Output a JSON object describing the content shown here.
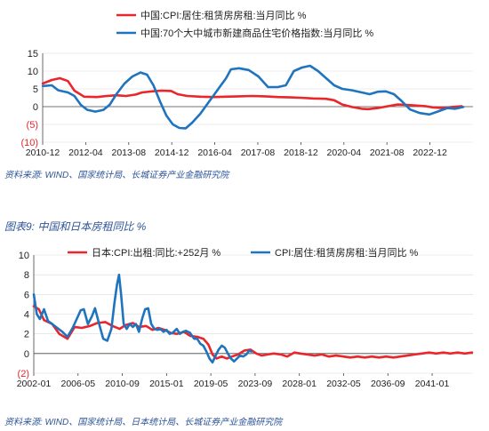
{
  "colors": {
    "red": "#e8262b",
    "blue": "#1f74bf",
    "source_text": "#2e5597",
    "axis": "#444444",
    "grid": "#d9d9d9"
  },
  "figure2_title": "图表9:  中国和日本房租同比 %",
  "sources": {
    "source1": "资料来源: WIND、国家统计局、长城证券产业金融研究院",
    "source2": "资料来源: WIND、国家统计局、日本统计局、长城证券产业金融研究院"
  },
  "chart_data": [
    {
      "type": "line",
      "title": "",
      "xlabel": "",
      "ylabel": "",
      "x_range": [
        2010.917,
        2024.25
      ],
      "ylim": [
        -10,
        15
      ],
      "yticks": [
        15,
        10,
        5,
        0,
        -5,
        -10
      ],
      "ytick_labels": [
        "15",
        "10",
        "5",
        "0",
        "(5)",
        "(10)"
      ],
      "xticks": [
        2010.917,
        2012.25,
        2013.583,
        2014.917,
        2016.25,
        2017.583,
        2018.917,
        2020.25,
        2021.583,
        2022.917
      ],
      "xtick_labels": [
        "2010-12",
        "2012-04",
        "2013-08",
        "2014-12",
        "2016-04",
        "2017-08",
        "2018-12",
        "2020-04",
        "2021-08",
        "2022-12"
      ],
      "legend_position": "top",
      "series": [
        {
          "name": "中国:CPI:居住:租赁房房租:当月同比 %",
          "color": "#e8262b",
          "points": [
            [
              2010.92,
              6.5
            ],
            [
              2011.2,
              7.5
            ],
            [
              2011.45,
              8.0
            ],
            [
              2011.7,
              7.2
            ],
            [
              2011.9,
              4.5
            ],
            [
              2012.2,
              2.8
            ],
            [
              2012.6,
              2.7
            ],
            [
              2012.9,
              3.0
            ],
            [
              2013.2,
              3.2
            ],
            [
              2013.5,
              3.0
            ],
            [
              2013.8,
              3.4
            ],
            [
              2014.0,
              4.0
            ],
            [
              2014.3,
              4.3
            ],
            [
              2014.6,
              4.5
            ],
            [
              2014.9,
              4.4
            ],
            [
              2015.1,
              3.5
            ],
            [
              2015.4,
              3.0
            ],
            [
              2015.8,
              2.8
            ],
            [
              2016.2,
              2.7
            ],
            [
              2016.6,
              2.8
            ],
            [
              2017.0,
              2.9
            ],
            [
              2017.4,
              3.0
            ],
            [
              2017.8,
              2.9
            ],
            [
              2018.2,
              2.7
            ],
            [
              2018.6,
              2.6
            ],
            [
              2018.9,
              2.5
            ],
            [
              2019.3,
              2.3
            ],
            [
              2019.7,
              2.2
            ],
            [
              2019.95,
              1.8
            ],
            [
              2020.2,
              0.6
            ],
            [
              2020.5,
              -0.1
            ],
            [
              2020.8,
              -0.6
            ],
            [
              2021.0,
              -0.7
            ],
            [
              2021.3,
              -0.4
            ],
            [
              2021.6,
              0.1
            ],
            [
              2021.9,
              0.6
            ],
            [
              2022.2,
              0.5
            ],
            [
              2022.5,
              0.3
            ],
            [
              2022.8,
              0.1
            ],
            [
              2023.0,
              -0.2
            ],
            [
              2023.3,
              -0.4
            ],
            [
              2023.6,
              -0.1
            ],
            [
              2023.9,
              0.1
            ]
          ]
        },
        {
          "name": "中国:70个大中城市新建商品住宅价格指数:当月同比 %",
          "color": "#1f74bf",
          "points": [
            [
              2010.92,
              5.8
            ],
            [
              2011.2,
              6.0
            ],
            [
              2011.4,
              4.6
            ],
            [
              2011.7,
              4.0
            ],
            [
              2011.9,
              3.0
            ],
            [
              2012.1,
              0.5
            ],
            [
              2012.3,
              -0.9
            ],
            [
              2012.55,
              -1.4
            ],
            [
              2012.8,
              -0.9
            ],
            [
              2013.0,
              0.6
            ],
            [
              2013.2,
              3.5
            ],
            [
              2013.45,
              6.5
            ],
            [
              2013.7,
              8.5
            ],
            [
              2013.95,
              9.6
            ],
            [
              2014.15,
              9.0
            ],
            [
              2014.35,
              6.0
            ],
            [
              2014.55,
              1.5
            ],
            [
              2014.75,
              -2.5
            ],
            [
              2014.95,
              -5.0
            ],
            [
              2015.15,
              -6.0
            ],
            [
              2015.35,
              -6.1
            ],
            [
              2015.55,
              -4.5
            ],
            [
              2015.8,
              -2.0
            ],
            [
              2016.0,
              0.5
            ],
            [
              2016.2,
              3.0
            ],
            [
              2016.4,
              5.5
            ],
            [
              2016.6,
              8.0
            ],
            [
              2016.75,
              10.5
            ],
            [
              2017.0,
              10.8
            ],
            [
              2017.3,
              10.3
            ],
            [
              2017.6,
              8.5
            ],
            [
              2017.9,
              5.5
            ],
            [
              2018.2,
              5.5
            ],
            [
              2018.45,
              6.0
            ],
            [
              2018.7,
              10.0
            ],
            [
              2018.95,
              11.0
            ],
            [
              2019.2,
              11.5
            ],
            [
              2019.45,
              10.0
            ],
            [
              2019.7,
              8.0
            ],
            [
              2019.95,
              6.0
            ],
            [
              2020.2,
              5.0
            ],
            [
              2020.5,
              4.6
            ],
            [
              2020.8,
              4.0
            ],
            [
              2021.05,
              3.5
            ],
            [
              2021.3,
              4.2
            ],
            [
              2021.55,
              4.3
            ],
            [
              2021.8,
              3.5
            ],
            [
              2022.05,
              1.5
            ],
            [
              2022.3,
              -0.8
            ],
            [
              2022.6,
              -1.8
            ],
            [
              2022.9,
              -2.2
            ],
            [
              2023.15,
              -1.4
            ],
            [
              2023.45,
              -0.4
            ],
            [
              2023.7,
              -0.6
            ],
            [
              2023.95,
              -0.1
            ]
          ]
        }
      ]
    },
    {
      "type": "line",
      "title": "",
      "xlabel": "",
      "ylabel": "",
      "x_range": [
        2002.0,
        2045.0
      ],
      "ylim": [
        -2,
        10
      ],
      "yticks": [
        10,
        8,
        6,
        4,
        2,
        0,
        -2
      ],
      "ytick_labels": [
        "10",
        "8",
        "6",
        "4",
        "2",
        "0",
        "(2)"
      ],
      "xticks": [
        2002.0,
        2006.333,
        2010.667,
        2015.0,
        2019.333,
        2023.667,
        2028.0,
        2032.333,
        2036.667,
        2041.0
      ],
      "xtick_labels": [
        "2002-01",
        "2006-05",
        "2010-09",
        "2015-01",
        "2019-05",
        "2023-09",
        "2028-01",
        "2032-05",
        "2036-09",
        "2041-01"
      ],
      "legend_position": "top",
      "series": [
        {
          "name": "日本:CPI:出租:同比:+252月 %",
          "color": "#e8262b",
          "points": [
            [
              2002.0,
              4.8
            ],
            [
              2002.5,
              4.5
            ],
            [
              2003.0,
              3.4
            ],
            [
              2003.8,
              3.0
            ],
            [
              2004.5,
              2.0
            ],
            [
              2005.3,
              1.5
            ],
            [
              2006.0,
              2.7
            ],
            [
              2006.7,
              2.6
            ],
            [
              2007.5,
              2.8
            ],
            [
              2008.2,
              3.1
            ],
            [
              2009.0,
              3.2
            ],
            [
              2009.7,
              2.8
            ],
            [
              2010.4,
              2.5
            ],
            [
              2011.0,
              2.9
            ],
            [
              2011.7,
              3.1
            ],
            [
              2012.3,
              2.7
            ],
            [
              2013.0,
              2.8
            ],
            [
              2013.6,
              2.4
            ],
            [
              2014.2,
              2.6
            ],
            [
              2014.8,
              2.4
            ],
            [
              2015.4,
              2.1
            ],
            [
              2016.0,
              2.0
            ],
            [
              2016.7,
              2.2
            ],
            [
              2017.3,
              1.8
            ],
            [
              2018.0,
              1.7
            ],
            [
              2018.6,
              1.5
            ],
            [
              2019.1,
              0.9
            ],
            [
              2019.5,
              -0.1
            ],
            [
              2019.9,
              -0.5
            ],
            [
              2020.4,
              -0.3
            ],
            [
              2020.9,
              -0.5
            ],
            [
              2021.4,
              -0.3
            ],
            [
              2022.0,
              -0.1
            ],
            [
              2022.6,
              0.3
            ],
            [
              2023.2,
              0.4
            ],
            [
              2023.8,
              0.0
            ],
            [
              2024.3,
              -0.2
            ],
            [
              2024.9,
              -0.1
            ],
            [
              2025.5,
              0.0
            ],
            [
              2026.2,
              -0.1
            ],
            [
              2026.8,
              -0.3
            ],
            [
              2027.5,
              0.1
            ],
            [
              2028.1,
              0.0
            ],
            [
              2028.8,
              -0.1
            ],
            [
              2029.5,
              -0.2
            ],
            [
              2030.2,
              -0.1
            ],
            [
              2030.9,
              -0.3
            ],
            [
              2031.6,
              -0.2
            ],
            [
              2032.3,
              -0.3
            ],
            [
              2033.0,
              -0.4
            ],
            [
              2033.7,
              -0.3
            ],
            [
              2034.4,
              -0.4
            ],
            [
              2035.1,
              -0.3
            ],
            [
              2035.8,
              -0.4
            ],
            [
              2036.5,
              -0.3
            ],
            [
              2037.2,
              -0.4
            ],
            [
              2037.9,
              -0.3
            ],
            [
              2038.6,
              -0.2
            ],
            [
              2039.3,
              -0.1
            ],
            [
              2040.0,
              0.0
            ],
            [
              2040.7,
              0.1
            ],
            [
              2041.4,
              0.0
            ],
            [
              2042.1,
              0.1
            ],
            [
              2042.8,
              0.0
            ],
            [
              2043.5,
              0.1
            ],
            [
              2044.2,
              0.0
            ],
            [
              2044.9,
              0.1
            ]
          ]
        },
        {
          "name": "CPI:居住:租赁房房租:当月同比 %",
          "color": "#1f74bf",
          "points": [
            [
              2002.0,
              6.0
            ],
            [
              2002.3,
              4.0
            ],
            [
              2002.6,
              3.5
            ],
            [
              2003.0,
              4.5
            ],
            [
              2003.4,
              3.3
            ],
            [
              2003.8,
              3.0
            ],
            [
              2004.3,
              2.6
            ],
            [
              2004.8,
              2.2
            ],
            [
              2005.3,
              1.7
            ],
            [
              2005.8,
              2.6
            ],
            [
              2006.2,
              3.5
            ],
            [
              2006.6,
              4.4
            ],
            [
              2006.9,
              4.5
            ],
            [
              2007.3,
              3.0
            ],
            [
              2007.7,
              3.8
            ],
            [
              2008.0,
              4.6
            ],
            [
              2008.4,
              3.0
            ],
            [
              2008.8,
              1.5
            ],
            [
              2009.2,
              1.3
            ],
            [
              2009.6,
              2.5
            ],
            [
              2009.9,
              5.2
            ],
            [
              2010.15,
              7.0
            ],
            [
              2010.35,
              8.0
            ],
            [
              2010.55,
              6.0
            ],
            [
              2010.8,
              3.0
            ],
            [
              2011.1,
              2.5
            ],
            [
              2011.4,
              3.0
            ],
            [
              2011.7,
              2.7
            ],
            [
              2012.0,
              3.0
            ],
            [
              2012.3,
              2.2
            ],
            [
              2012.6,
              3.5
            ],
            [
              2012.9,
              4.5
            ],
            [
              2013.2,
              4.6
            ],
            [
              2013.5,
              3.0
            ],
            [
              2013.8,
              2.5
            ],
            [
              2014.1,
              2.4
            ],
            [
              2014.4,
              2.5
            ],
            [
              2014.7,
              2.2
            ],
            [
              2015.0,
              2.4
            ],
            [
              2015.3,
              2.0
            ],
            [
              2015.6,
              2.1
            ],
            [
              2016.0,
              2.5
            ],
            [
              2016.3,
              2.0
            ],
            [
              2016.6,
              2.2
            ],
            [
              2016.9,
              2.3
            ],
            [
              2017.3,
              2.1
            ],
            [
              2017.7,
              1.5
            ],
            [
              2018.0,
              1.5
            ],
            [
              2018.3,
              1.0
            ],
            [
              2018.6,
              0.8
            ],
            [
              2018.9,
              0.2
            ],
            [
              2019.2,
              -0.5
            ],
            [
              2019.5,
              -0.9
            ],
            [
              2019.8,
              -0.2
            ],
            [
              2020.1,
              0.4
            ],
            [
              2020.4,
              0.8
            ],
            [
              2020.7,
              0.6
            ],
            [
              2021.0,
              0.0
            ],
            [
              2021.3,
              -0.5
            ],
            [
              2021.6,
              -0.8
            ],
            [
              2021.9,
              -0.5
            ],
            [
              2022.2,
              -0.2
            ],
            [
              2022.5,
              -0.3
            ],
            [
              2022.8,
              -0.1
            ],
            [
              2023.1,
              0.3
            ],
            [
              2023.3,
              0.2
            ]
          ]
        }
      ]
    }
  ]
}
